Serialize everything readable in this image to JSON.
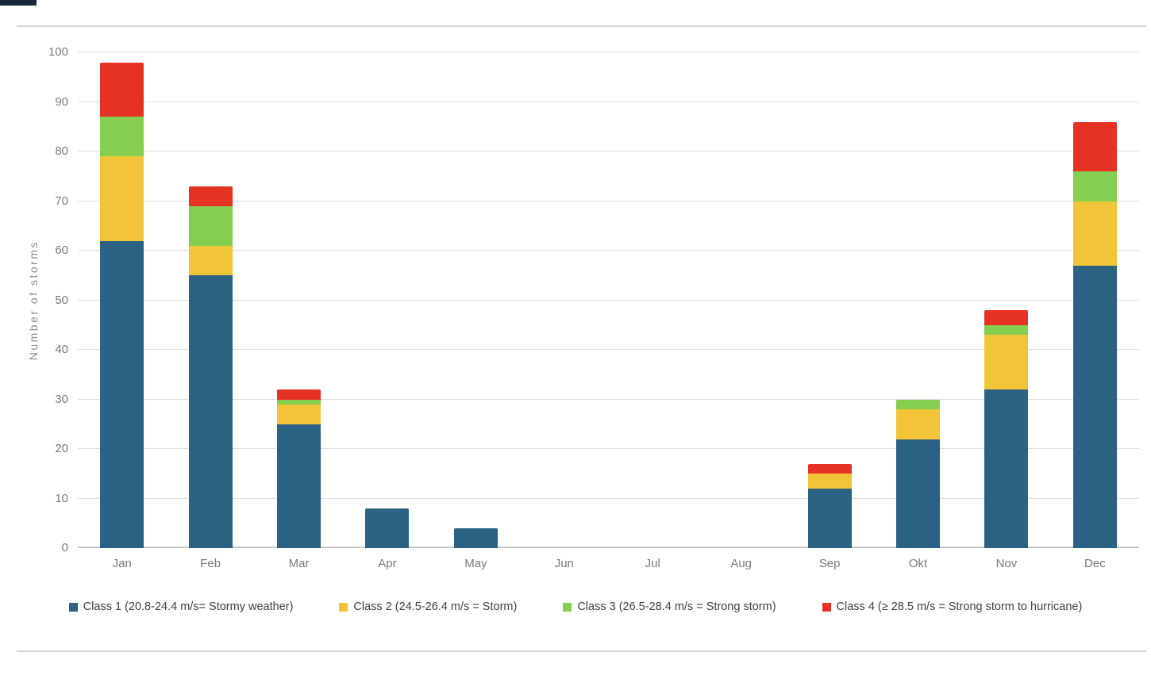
{
  "page": {
    "background": "#ffffff",
    "top_rule_color": "#d4d4d4",
    "bottom_rule_color": "#d4d4d4",
    "corner_artifact_color": "#16283a"
  },
  "chart_data": {
    "type": "bar",
    "stacked": true,
    "title": "",
    "xlabel": "",
    "ylabel": "Number of storms",
    "ylim": [
      0,
      100
    ],
    "ytick_step": 10,
    "yticks": [
      0,
      10,
      20,
      30,
      40,
      50,
      60,
      70,
      80,
      90,
      100
    ],
    "categories": [
      "Jan",
      "Feb",
      "Mar",
      "Apr",
      "May",
      "Jun",
      "Jul",
      "Aug",
      "Sep",
      "Okt",
      "Nov",
      "Dec"
    ],
    "series": [
      {
        "name": "Class 1 (20.8-24.4 m/s= Stormy weather)",
        "color": "#2B6183",
        "values": [
          62,
          55,
          25,
          8,
          4,
          0,
          0,
          0,
          12,
          22,
          32,
          57
        ]
      },
      {
        "name": "Class 2 (24.5-26.4 m/s = Storm)",
        "color": "#F2C437",
        "values": [
          17,
          6,
          4,
          0,
          0,
          0,
          0,
          0,
          3,
          6,
          11,
          13
        ]
      },
      {
        "name": "Class 3 (26.5-28.4 m/s = Strong storm)",
        "color": "#84CE50",
        "values": [
          8,
          8,
          1,
          0,
          0,
          0,
          0,
          0,
          0,
          2,
          2,
          6
        ]
      },
      {
        "name": "Class 4 (≥ 28.5 m/s = Strong storm to hurricane)",
        "color": "#E63223",
        "values": [
          11,
          4,
          2,
          0,
          0,
          0,
          0,
          0,
          2,
          0,
          3,
          10
        ]
      }
    ],
    "totals": [
      98,
      73,
      32,
      8,
      4,
      0,
      0,
      0,
      17,
      30,
      48,
      86
    ],
    "grid": true,
    "gridline_color": "#dedede",
    "axis_line_color": "#c6c6c6",
    "tick_label_color": "#7a7a7a",
    "legend_position": "bottom",
    "legend_text_color": "#3f3f3f"
  }
}
